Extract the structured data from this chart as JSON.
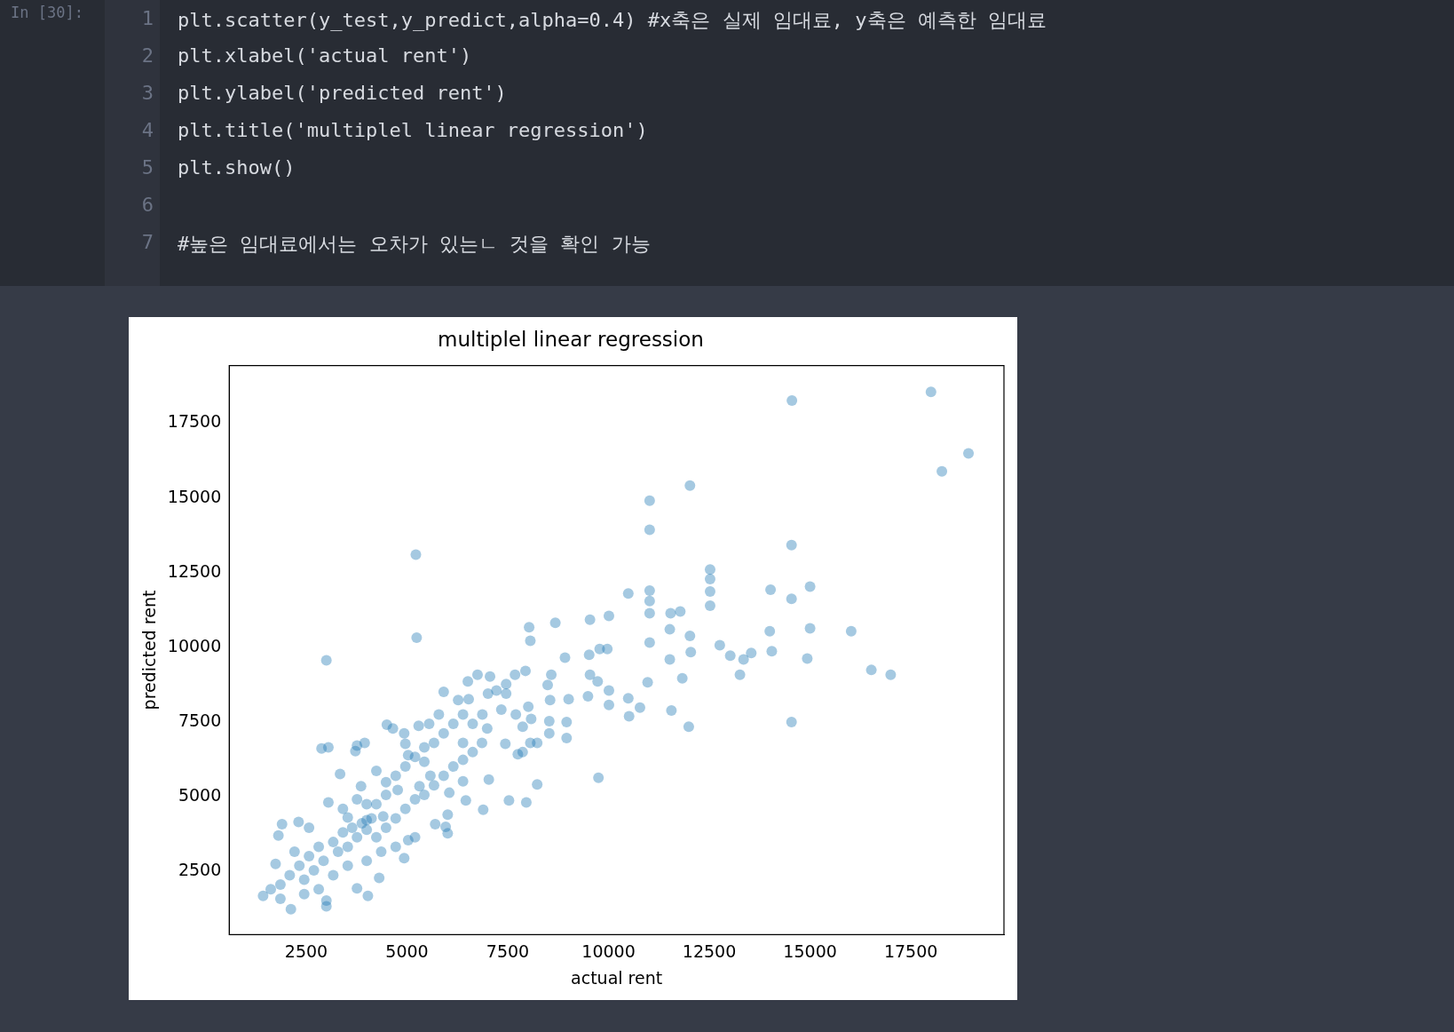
{
  "chart_data": {
    "type": "scatter",
    "title": "multiplel linear regression",
    "xlabel": "actual rent",
    "ylabel": "predicted rent",
    "annotations": [
      "In [30]:",
      "1 plt.scatter(y_test,y_predict,alpha=0.4) #x축은 실제 임대료, y축은 예측한 임대료",
      "2 plt.xlabel('actual rent')",
      "3 plt.ylabel('predicted rent')",
      "4 plt.title('multiplel linear regression')",
      "5 plt.show()",
      "6",
      "7 #높은 임대료에서는 오차가 있는ㄴ 것을 확인 가능"
    ],
    "xlim": [
      590,
      19810
    ],
    "ylim": [
      380,
      19430
    ],
    "xticks": [
      2500,
      5000,
      7500,
      10000,
      12500,
      15000,
      17500
    ],
    "yticks": [
      2500,
      5000,
      7500,
      10000,
      12500,
      15000,
      17500
    ],
    "grid": false,
    "legend": false,
    "marker": "circle",
    "series": [
      {
        "color": "#1f77b4",
        "x": [
          18000,
          14550,
          18930,
          18270,
          12020,
          11020,
          11020,
          14540,
          5220,
          12520,
          12520,
          12520,
          12520,
          11020,
          11020,
          11020,
          10490,
          14020,
          14540,
          15000,
          15000,
          16020,
          14000,
          12020,
          11520,
          11780,
          11540,
          11020,
          12040,
          12760,
          13020,
          13350,
          13540,
          13260,
          14050,
          14930,
          16520,
          17000,
          14540,
          11520,
          11830,
          10970,
          11560,
          11990,
          10780,
          10490,
          10510,
          10010,
          10010,
          9730,
          9540,
          9490,
          9010,
          8920,
          8680,
          8030,
          8060,
          9540,
          10010,
          9780,
          9970,
          9520,
          8580,
          8490,
          8550,
          7940,
          7680,
          7460,
          7460,
          7060,
          6750,
          7010,
          6530,
          5910,
          5240,
          3000,
          9750,
          8010,
          8080,
          8530,
          8530,
          7870,
          7870,
          8060,
          8230,
          7960,
          7530,
          8230,
          8960,
          8960,
          7440,
          7750,
          6860,
          7030,
          6890,
          6460,
          6390,
          6050,
          6010,
          5960,
          6010,
          5700,
          5290,
          4930,
          4500,
          4650,
          3720,
          3760,
          3950,
          3050,
          2880,
          3340,
          4960,
          5030,
          5430,
          5580,
          5310,
          5030,
          4930,
          4310,
          4030,
          3760,
          3000,
          3000,
          2120,
          1430,
          1740,
          1810,
          1900,
          2310,
          3050,
          3530,
          4000,
          4410,
          4770,
          4480,
          3860,
          4240,
          2570,
          2810,
          3170,
          3410,
          3640,
          3880,
          4120,
          2330,
          2090,
          1860,
          2450,
          2690,
          2930,
          3290,
          3530,
          3760,
          4000,
          4240,
          4480,
          4720,
          4960,
          5200,
          5430,
          5670,
          5910,
          6150,
          6390,
          6630,
          6390,
          6630,
          6870,
          6390,
          6150,
          5910,
          5670,
          5430,
          5200,
          4960,
          4720,
          4480,
          4240,
          4000,
          5200,
          4720,
          4360,
          4000,
          3530,
          3170,
          2810,
          2450,
          1860,
          1620,
          2210,
          2570,
          3410,
          3760,
          6510,
          7220,
          7340,
          7700,
          6990,
          5790,
          5550,
          6270
        ],
        "values": [
          18550,
          18260,
          16490,
          15890,
          15410,
          14910,
          13930,
          13420,
          13100,
          12600,
          12280,
          11870,
          11390,
          11900,
          11550,
          11140,
          11800,
          11930,
          11620,
          12030,
          10630,
          10540,
          10540,
          10380,
          10600,
          11200,
          11140,
          10160,
          9840,
          10070,
          9720,
          9590,
          9810,
          9080,
          9870,
          9620,
          9240,
          9080,
          7500,
          9590,
          8960,
          8830,
          7880,
          7340,
          7980,
          8290,
          7690,
          8070,
          8550,
          8860,
          9080,
          8360,
          8260,
          9650,
          10820,
          10670,
          10220,
          10920,
          11050,
          9940,
          9940,
          9750,
          9080,
          8740,
          8230,
          9210,
          9080,
          8770,
          8450,
          9020,
          9080,
          8450,
          8260,
          8510,
          10320,
          9560,
          5630,
          8010,
          7600,
          7530,
          7120,
          7340,
          6490,
          6800,
          6800,
          4810,
          4870,
          5410,
          7500,
          6960,
          6770,
          6420,
          6800,
          5570,
          4560,
          4870,
          5510,
          5130,
          4400,
          3990,
          3770,
          4080,
          7370,
          7120,
          7410,
          7280,
          6520,
          6710,
          6800,
          6650,
          6610,
          5760,
          6770,
          6390,
          6170,
          5700,
          5350,
          3540,
          2940,
          2280,
          1680,
          1930,
          1330,
          1520,
          1230,
          1680,
          2750,
          3700,
          4080,
          4150,
          4810,
          4300,
          4210,
          4340,
          5220,
          5480,
          5350,
          5860,
          3010,
          3320,
          3480,
          3800,
          3960,
          4110,
          4270,
          2690,
          2370,
          2060,
          2220,
          2530,
          2850,
          3160,
          3320,
          3640,
          3890,
          3640,
          3960,
          4270,
          4590,
          4910,
          5060,
          5380,
          5700,
          6010,
          6230,
          6490,
          6800,
          7440,
          7750,
          7750,
          7440,
          7120,
          6800,
          6650,
          6330,
          6010,
          5700,
          5060,
          4750,
          4750,
          3640,
          3320,
          3160,
          2850,
          2690,
          2370,
          1900,
          1740,
          1580,
          1900,
          3160,
          3960,
          4590,
          4910,
          8860,
          8550,
          7910,
          7750,
          7280,
          7750,
          7440,
          8230
        ]
      }
    ]
  }
}
